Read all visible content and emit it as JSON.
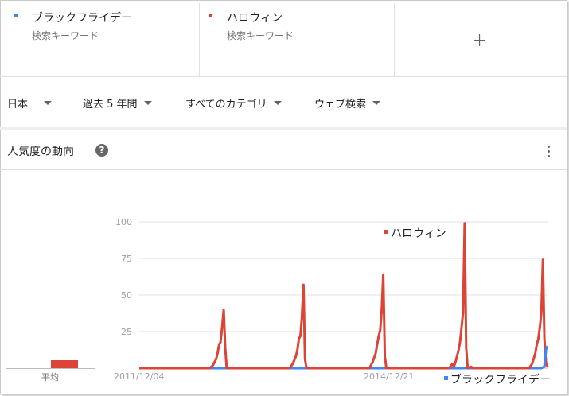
{
  "terms": [
    {
      "name": "ブラックフライデー",
      "sub": "検索キーワード",
      "color": "#4285f4"
    },
    {
      "name": "ハロウィン",
      "sub": "検索キーワード",
      "color": "#db4437"
    }
  ],
  "add_term_icon": "plus-icon",
  "filters": {
    "region": "日本",
    "period": "過去 5 年間",
    "category": "すべてのカテゴリ",
    "search_type": "ウェブ検索"
  },
  "card": {
    "title": "人気度の動向",
    "help": "?",
    "more_icon": "more-vert-icon"
  },
  "average": {
    "label": "平均",
    "values": [
      {
        "series": "ブラックフライデー",
        "value": 0
      },
      {
        "series": "ハロウィン",
        "value": 5
      }
    ]
  },
  "chart_data": {
    "type": "line",
    "x_start_label": "2011/12/04",
    "x_mid_label": "2014/12/21",
    "ylim": [
      0,
      100
    ],
    "yticks": [
      25,
      50,
      75,
      100
    ],
    "grid": true,
    "series": [
      {
        "name": "ハロウィン",
        "color": "#db4437",
        "points": [
          [
            0,
            0
          ],
          [
            46,
            0
          ],
          [
            48,
            2
          ],
          [
            50,
            6
          ],
          [
            51,
            10
          ],
          [
            52,
            16
          ],
          [
            53,
            18
          ],
          [
            54,
            28
          ],
          [
            55,
            40
          ],
          [
            56,
            14
          ],
          [
            57,
            0
          ],
          [
            98,
            0
          ],
          [
            100,
            3
          ],
          [
            102,
            8
          ],
          [
            103,
            12
          ],
          [
            104,
            20
          ],
          [
            105,
            22
          ],
          [
            106,
            35
          ],
          [
            107,
            57
          ],
          [
            108,
            6
          ],
          [
            109,
            0
          ],
          [
            150,
            0
          ],
          [
            152,
            4
          ],
          [
            154,
            10
          ],
          [
            155,
            16
          ],
          [
            156,
            22
          ],
          [
            157,
            26
          ],
          [
            158,
            40
          ],
          [
            159,
            64
          ],
          [
            160,
            8
          ],
          [
            161,
            0
          ],
          [
            202,
            0
          ],
          [
            204,
            3
          ],
          [
            205,
            1
          ],
          [
            206,
            4
          ],
          [
            208,
            12
          ],
          [
            209,
            18
          ],
          [
            210,
            28
          ],
          [
            211,
            38
          ],
          [
            212,
            99
          ],
          [
            213,
            14
          ],
          [
            214,
            0
          ],
          [
            216,
            1
          ],
          [
            218,
            0
          ],
          [
            254,
            0
          ],
          [
            256,
            3
          ],
          [
            258,
            10
          ],
          [
            259,
            16
          ],
          [
            260,
            20
          ],
          [
            261,
            28
          ],
          [
            262,
            38
          ],
          [
            263,
            74
          ],
          [
            264,
            20
          ],
          [
            265,
            4
          ],
          [
            266,
            1
          ]
        ]
      },
      {
        "name": "ブラックフライデー",
        "color": "#4285f4",
        "points": [
          [
            0,
            0
          ],
          [
            262,
            0
          ],
          [
            264,
            1
          ],
          [
            265,
            13
          ],
          [
            266,
            15
          ]
        ]
      }
    ]
  }
}
